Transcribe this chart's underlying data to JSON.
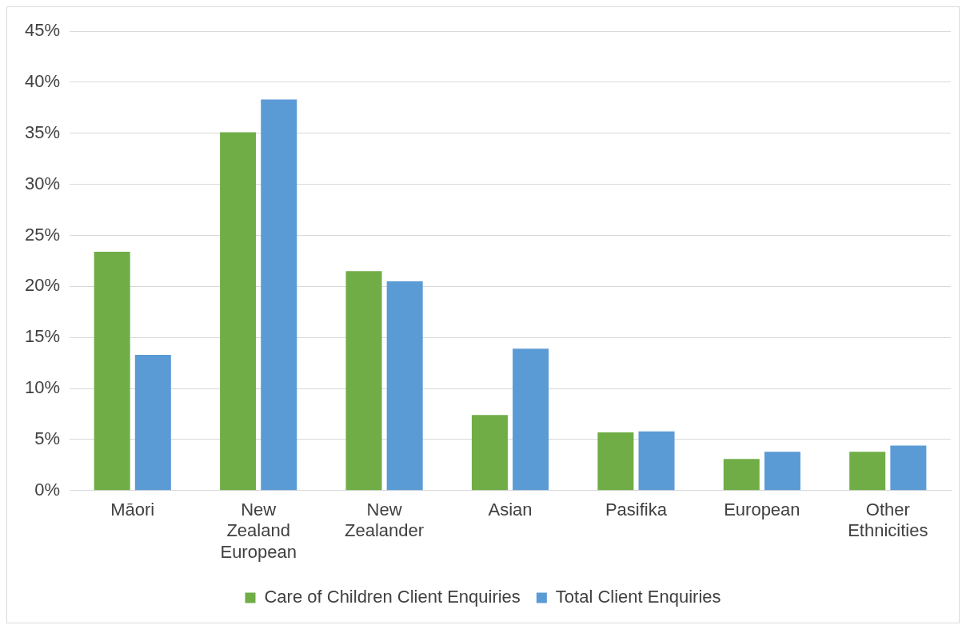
{
  "chart_data": {
    "type": "bar",
    "categories": [
      "Māori",
      "New Zealand European",
      "New Zealander",
      "Asian",
      "Pasifika",
      "European",
      "Other Ethnicities"
    ],
    "series": [
      {
        "name": "Care of Children Client Enquiries",
        "color": "#70ad47",
        "values": [
          23.4,
          35.1,
          21.5,
          7.4,
          5.7,
          3.1,
          3.8
        ]
      },
      {
        "name": "Total Client Enquiries",
        "color": "#5b9bd5",
        "values": [
          13.3,
          38.3,
          20.5,
          13.9,
          5.8,
          3.8,
          4.4
        ]
      }
    ],
    "ylim": [
      0,
      45
    ],
    "yticks": [
      {
        "value": 0,
        "label": "0%"
      },
      {
        "value": 5,
        "label": "5%"
      },
      {
        "value": 10,
        "label": "10%"
      },
      {
        "value": 15,
        "label": "15%"
      },
      {
        "value": 20,
        "label": "20%"
      },
      {
        "value": 25,
        "label": "25%"
      },
      {
        "value": 30,
        "label": "30%"
      },
      {
        "value": 35,
        "label": "35%"
      },
      {
        "value": 40,
        "label": "40%"
      },
      {
        "value": 45,
        "label": "45%"
      }
    ],
    "grid": "y",
    "legend": "bottom"
  }
}
